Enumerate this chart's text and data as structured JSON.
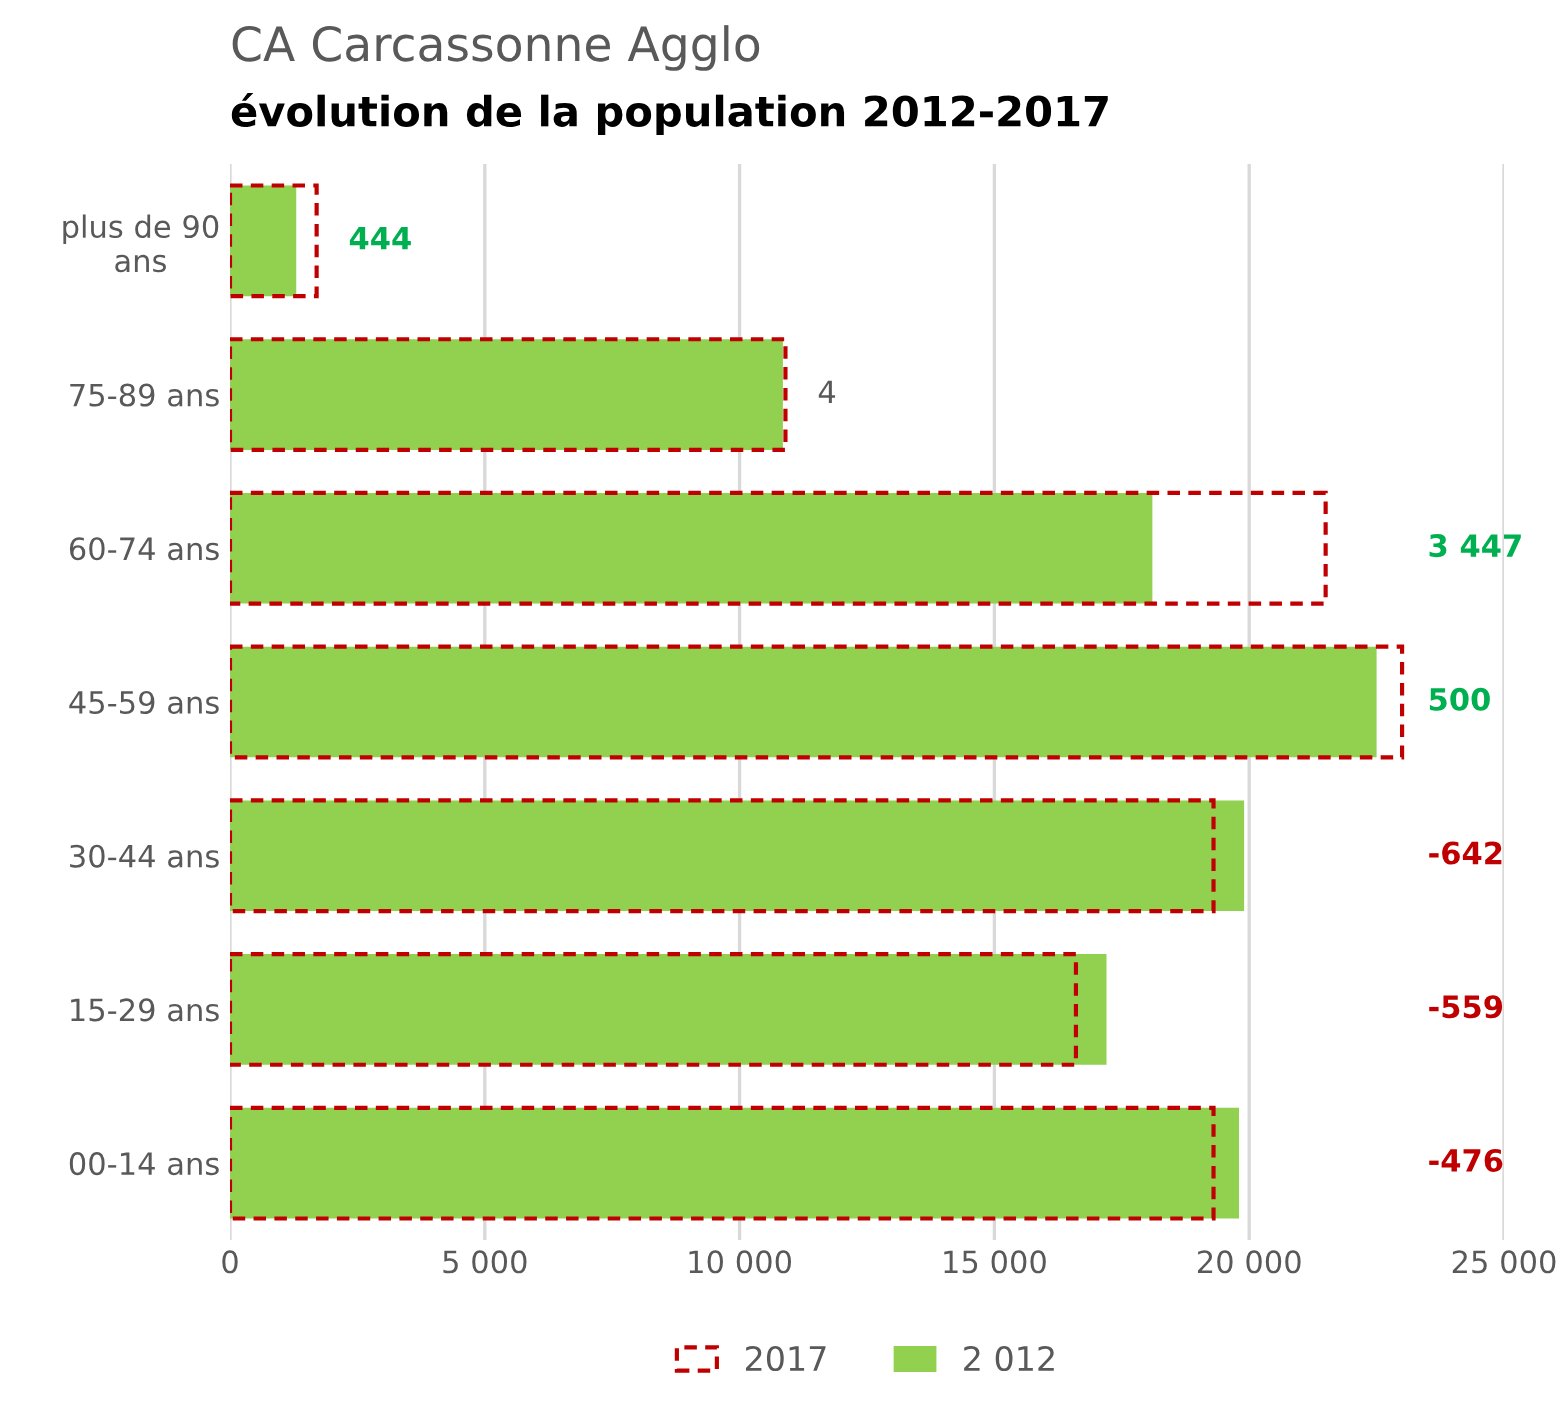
{
  "chart_data": {
    "type": "bar",
    "orientation": "horizontal",
    "title": "CA Carcassonne Agglo",
    "subtitle": "évolution de la population 2012-2017",
    "categories": [
      "plus de 90\nans",
      "75-89 ans",
      "60-74 ans",
      "45-59 ans",
      "30-44 ans",
      "15-29 ans",
      "00-14 ans"
    ],
    "series": [
      {
        "name": "2017",
        "color": "#c00000",
        "line_style": "dashed",
        "values": [
          1700,
          10900,
          21500,
          23000,
          19300,
          16600,
          19300
        ]
      },
      {
        "name": "2 012",
        "color": "#92d050",
        "values": [
          1300,
          10850,
          18100,
          22500,
          19900,
          17200,
          19800
        ]
      }
    ],
    "annotations": [
      "444",
      "4",
      "3 447",
      "500",
      "-642",
      "-559",
      "-476"
    ],
    "xlim": [
      0,
      25000
    ],
    "xticks": [
      0,
      {
        "value": 5000,
        "label": "5 000"
      },
      {
        "value": 10000,
        "label": "10 000"
      },
      {
        "value": 15000,
        "label": "15 000"
      },
      {
        "value": 20000,
        "label": "20 000"
      },
      {
        "value": 25000,
        "label": "25 000"
      }
    ],
    "grid": "x",
    "legend": "bottom"
  }
}
